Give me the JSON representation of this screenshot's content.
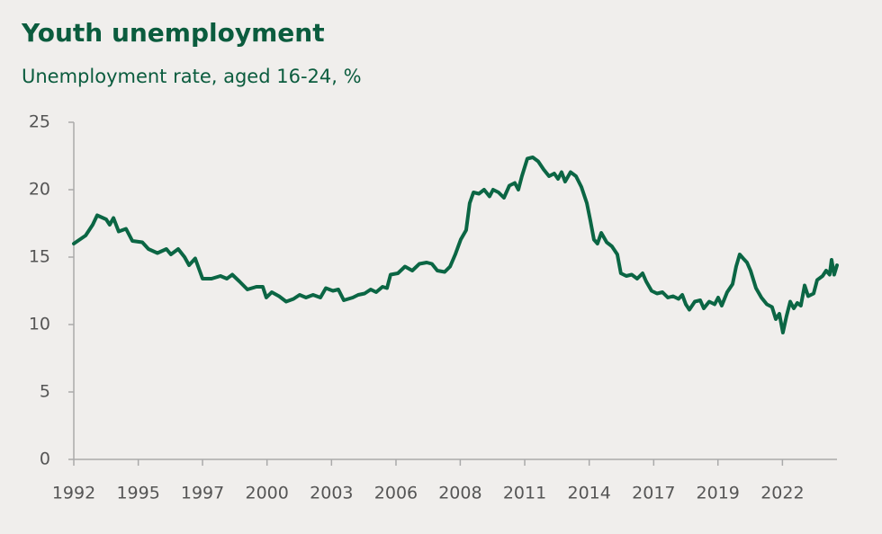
{
  "chart_data": {
    "type": "line",
    "title": "Youth unemployment",
    "subtitle": "Unemployment rate, aged 16-24, %",
    "x": [
      1992.0,
      1992.5,
      1992.8,
      1992.99,
      1993.37,
      1993.52,
      1993.68,
      1993.9,
      1994.21,
      1994.48,
      1994.9,
      1995.16,
      1995.54,
      1995.92,
      1996.11,
      1996.42,
      1996.69,
      1996.88,
      1997.14,
      1997.45,
      1997.83,
      1998.21,
      1998.48,
      1998.71,
      1999.01,
      1999.35,
      1999.73,
      2000.0,
      2000.15,
      2000.38,
      2000.69,
      2000.99,
      2001.3,
      2001.56,
      2001.83,
      2002.13,
      2002.44,
      2002.67,
      2002.97,
      2003.2,
      2003.43,
      2003.81,
      2004.04,
      2004.31,
      2004.57,
      2004.8,
      2005.07,
      2005.26,
      2005.41,
      2005.72,
      2006.02,
      2006.33,
      2006.63,
      2006.94,
      2007.16,
      2007.39,
      2007.7,
      2007.93,
      2008.15,
      2008.38,
      2008.61,
      2008.76,
      2008.92,
      2009.15,
      2009.37,
      2009.6,
      2009.75,
      2009.98,
      2010.21,
      2010.44,
      2010.67,
      2010.82,
      2010.97,
      2011.2,
      2011.43,
      2011.66,
      2011.89,
      2012.12,
      2012.34,
      2012.5,
      2012.65,
      2012.8,
      2013.03,
      2013.26,
      2013.49,
      2013.72,
      2013.87,
      2014.02,
      2014.17,
      2014.33,
      2014.56,
      2014.78,
      2015.01,
      2015.16,
      2015.39,
      2015.62,
      2015.85,
      2016.08,
      2016.23,
      2016.46,
      2016.69,
      2016.92,
      2017.15,
      2017.37,
      2017.6,
      2017.76,
      2017.91,
      2018.06,
      2018.29,
      2018.52,
      2018.67,
      2018.9,
      2019.13,
      2019.28,
      2019.43,
      2019.66,
      2019.89,
      2020.04,
      2020.19,
      2020.34,
      2020.5,
      2020.65,
      2020.88,
      2021.11,
      2021.34,
      2021.56,
      2021.72,
      2021.87,
      2022.02,
      2022.17,
      2022.33,
      2022.48,
      2022.63,
      2022.78,
      2022.94,
      2023.09,
      2023.32,
      2023.47,
      2023.7,
      2023.85,
      2024.0,
      2024.08,
      2024.19,
      2024.31
    ],
    "series": [
      {
        "color": "#0b6644",
        "values": [
          16.0,
          16.6,
          17.4,
          18.1,
          17.8,
          17.4,
          17.9,
          16.9,
          17.1,
          16.2,
          16.1,
          15.6,
          15.3,
          15.6,
          15.2,
          15.6,
          15.0,
          14.4,
          14.9,
          13.4,
          13.4,
          13.6,
          13.4,
          13.7,
          13.2,
          12.6,
          12.8,
          12.8,
          12.0,
          12.4,
          12.1,
          11.7,
          11.9,
          12.2,
          12.0,
          12.2,
          12.0,
          12.7,
          12.5,
          12.6,
          11.8,
          12.0,
          12.2,
          12.3,
          12.6,
          12.4,
          12.8,
          12.7,
          13.7,
          13.8,
          14.3,
          14.0,
          14.5,
          14.6,
          14.5,
          14.0,
          13.9,
          14.3,
          15.2,
          16.3,
          17.0,
          19.0,
          19.8,
          19.7,
          20.0,
          19.5,
          20.0,
          19.8,
          19.4,
          20.3,
          20.5,
          20.0,
          21.0,
          22.3,
          22.4,
          22.1,
          21.5,
          21.0,
          21.2,
          20.8,
          21.3,
          20.6,
          21.3,
          21.0,
          20.2,
          19.0,
          17.7,
          16.3,
          16.0,
          16.8,
          16.1,
          15.8,
          15.2,
          13.8,
          13.6,
          13.7,
          13.4,
          13.8,
          13.2,
          12.5,
          12.3,
          12.4,
          12.0,
          12.1,
          11.9,
          12.2,
          11.5,
          11.1,
          11.7,
          11.8,
          11.2,
          11.7,
          11.5,
          12.0,
          11.4,
          12.4,
          13.0,
          14.3,
          15.2,
          14.9,
          14.6,
          14.0,
          12.7,
          12.0,
          11.5,
          11.3,
          10.4,
          10.8,
          9.4,
          10.6,
          11.7,
          11.2,
          11.6,
          11.4,
          12.9,
          12.1,
          12.3,
          13.3,
          13.6,
          14.0,
          13.7,
          14.8,
          13.7,
          14.4
        ]
      }
    ],
    "xlim": [
      1992,
      2024.31
    ],
    "xticks": [
      1992,
      {
        "value": 1994.73,
        "label": "1995"
      },
      {
        "value": 1997.45,
        "label": "1997"
      },
      {
        "value": 2000.18,
        "label": "2000"
      },
      {
        "value": 2002.91,
        "label": "2003"
      },
      {
        "value": 2005.64,
        "label": "2006"
      },
      {
        "value": 2008.36,
        "label": "2008"
      },
      {
        "value": 2011.09,
        "label": "2011"
      },
      {
        "value": 2013.82,
        "label": "2014"
      },
      {
        "value": 2016.55,
        "label": "2017"
      },
      {
        "value": 2019.27,
        "label": "2019"
      },
      2022
    ],
    "ylim": [
      0,
      25
    ],
    "yticks": [
      0,
      5,
      10,
      15,
      20,
      25
    ]
  }
}
